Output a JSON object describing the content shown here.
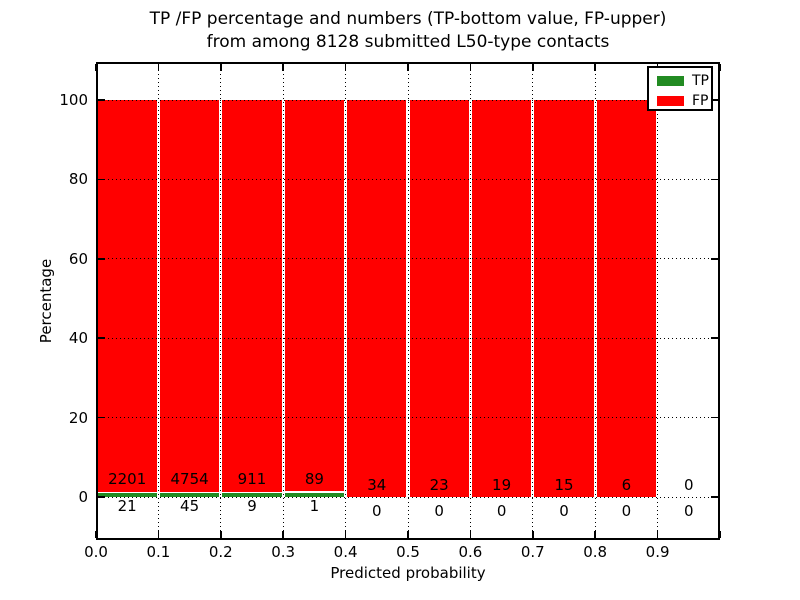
{
  "figure": {
    "title_line1": "TP /FP percentage and numbers (TP-bottom value, FP-upper)",
    "title_line2": "from among 8128 submitted L50-type contacts",
    "xlabel": "Predicted probability",
    "ylabel": "Percentage"
  },
  "legend": {
    "position": "upper right",
    "items": [
      {
        "label": "TP",
        "color": "#228b22"
      },
      {
        "label": "FP",
        "color": "#ff0000"
      }
    ]
  },
  "chart_data": {
    "type": "bar",
    "subtype": "stacked-percentage",
    "title": "TP /FP percentage and numbers (TP-bottom value, FP-upper) from among 8128 submitted L50-type contacts",
    "total_contacts": 8128,
    "xlabel": "Predicted probability",
    "ylabel": "Percentage",
    "xlim": [
      0.0,
      1.0
    ],
    "ylim": [
      -11,
      110
    ],
    "xtick_labels": [
      "0.0",
      "0.1",
      "0.2",
      "0.3",
      "0.4",
      "0.5",
      "0.6",
      "0.7",
      "0.8",
      "0.9"
    ],
    "ytick_values": [
      0,
      20,
      40,
      60,
      80,
      100
    ],
    "grid_style": "dotted",
    "grid_above_bars": true,
    "bar_edge_color": "#ffffff",
    "categories": [
      "0.0-0.1",
      "0.1-0.2",
      "0.2-0.3",
      "0.3-0.4",
      "0.4-0.5",
      "0.5-0.6",
      "0.6-0.7",
      "0.7-0.8",
      "0.8-0.9",
      "0.9-1.0"
    ],
    "series": [
      {
        "name": "TP",
        "color": "#228b22",
        "counts": [
          21,
          45,
          9,
          1,
          0,
          0,
          0,
          0,
          0,
          0
        ],
        "percent": [
          0.94,
          0.94,
          0.98,
          1.11,
          0,
          0,
          0,
          0,
          0,
          null
        ]
      },
      {
        "name": "FP",
        "color": "#ff0000",
        "counts": [
          2201,
          4754,
          911,
          89,
          34,
          23,
          19,
          15,
          6,
          0
        ],
        "percent": [
          99.06,
          99.06,
          99.02,
          98.89,
          100,
          100,
          100,
          100,
          100,
          null
        ]
      }
    ]
  }
}
